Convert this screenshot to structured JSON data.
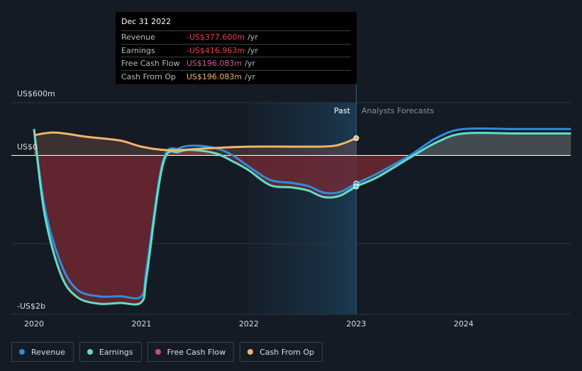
{
  "tooltip": {
    "date": "Dec 31 2022",
    "rows": [
      {
        "label": "Revenue",
        "value": "-US$377.600m",
        "unit": "/yr",
        "color": "#e8424a"
      },
      {
        "label": "Earnings",
        "value": "-US$416.963m",
        "unit": "/yr",
        "color": "#e8424a"
      },
      {
        "label": "Free Cash Flow",
        "value": "US$196.083m",
        "unit": "/yr",
        "color": "#d05c9a"
      },
      {
        "label": "Cash From Op",
        "value": "US$196.083m",
        "unit": "/yr",
        "color": "#f2b56b"
      }
    ]
  },
  "regions": {
    "past": "Past",
    "forecast": "Analysts Forecasts"
  },
  "legend": [
    {
      "label": "Revenue",
      "color": "#2e8ddf"
    },
    {
      "label": "Earnings",
      "color": "#5fe0c6"
    },
    {
      "label": "Free Cash Flow",
      "color": "#c54c88"
    },
    {
      "label": "Cash From Op",
      "color": "#f2b56b"
    }
  ],
  "chart_data": {
    "type": "line",
    "y_tick_labels": [
      "US$600m",
      "US$0",
      "-US$2b"
    ],
    "ylim": [
      -2000,
      600
    ],
    "x_ticks": [
      {
        "label": "2020",
        "x": 2020.0
      },
      {
        "label": "2021",
        "x": 2021.0
      },
      {
        "label": "2022",
        "x": 2022.0
      },
      {
        "label": "2023",
        "x": 2023.0
      },
      {
        "label": "2024",
        "x": 2024.0
      }
    ],
    "xlim": [
      2019.78,
      2025.0
    ],
    "past_end": 2023.0,
    "past_shade_start": 2022.0,
    "series": [
      {
        "name": "Revenue",
        "color": "#2e8ddf",
        "points": [
          [
            2020.0,
            300
          ],
          [
            2020.1,
            -700
          ],
          [
            2020.25,
            -1450
          ],
          [
            2020.4,
            -1800
          ],
          [
            2020.6,
            -1890
          ],
          [
            2020.8,
            -1890
          ],
          [
            2021.0,
            -1890
          ],
          [
            2021.05,
            -1500
          ],
          [
            2021.2,
            -80
          ],
          [
            2021.35,
            80
          ],
          [
            2021.5,
            110
          ],
          [
            2021.7,
            80
          ],
          [
            2021.85,
            0
          ],
          [
            2022.0,
            -150
          ],
          [
            2022.2,
            -330
          ],
          [
            2022.4,
            -370
          ],
          [
            2022.55,
            -410
          ],
          [
            2022.7,
            -500
          ],
          [
            2022.85,
            -490
          ],
          [
            2023.0,
            -378
          ],
          [
            2023.2,
            -240
          ],
          [
            2023.5,
            0
          ],
          [
            2023.75,
            200
          ],
          [
            2024.0,
            300
          ],
          [
            2024.5,
            300
          ],
          [
            2025.0,
            300
          ]
        ]
      },
      {
        "name": "Earnings",
        "color": "#5fe0c6",
        "points": [
          [
            2020.0,
            300
          ],
          [
            2020.1,
            -800
          ],
          [
            2020.25,
            -1600
          ],
          [
            2020.4,
            -1900
          ],
          [
            2020.6,
            -1990
          ],
          [
            2020.8,
            -1980
          ],
          [
            2021.0,
            -1970
          ],
          [
            2021.05,
            -1600
          ],
          [
            2021.2,
            -120
          ],
          [
            2021.35,
            40
          ],
          [
            2021.5,
            60
          ],
          [
            2021.7,
            20
          ],
          [
            2021.85,
            -80
          ],
          [
            2022.0,
            -200
          ],
          [
            2022.2,
            -400
          ],
          [
            2022.4,
            -430
          ],
          [
            2022.55,
            -470
          ],
          [
            2022.7,
            -560
          ],
          [
            2022.85,
            -540
          ],
          [
            2023.0,
            -417
          ],
          [
            2023.2,
            -290
          ],
          [
            2023.5,
            -30
          ],
          [
            2023.75,
            150
          ],
          [
            2024.0,
            250
          ],
          [
            2024.5,
            250
          ],
          [
            2025.0,
            250
          ]
        ]
      },
      {
        "name": "Cash From Op",
        "color": "#f2b56b",
        "points": [
          [
            2020.0,
            230
          ],
          [
            2020.2,
            260
          ],
          [
            2020.5,
            210
          ],
          [
            2020.8,
            170
          ],
          [
            2021.0,
            100
          ],
          [
            2021.25,
            60
          ],
          [
            2021.6,
            80
          ],
          [
            2022.0,
            100
          ],
          [
            2022.5,
            100
          ],
          [
            2022.8,
            110
          ],
          [
            2023.0,
            196
          ]
        ]
      }
    ]
  }
}
